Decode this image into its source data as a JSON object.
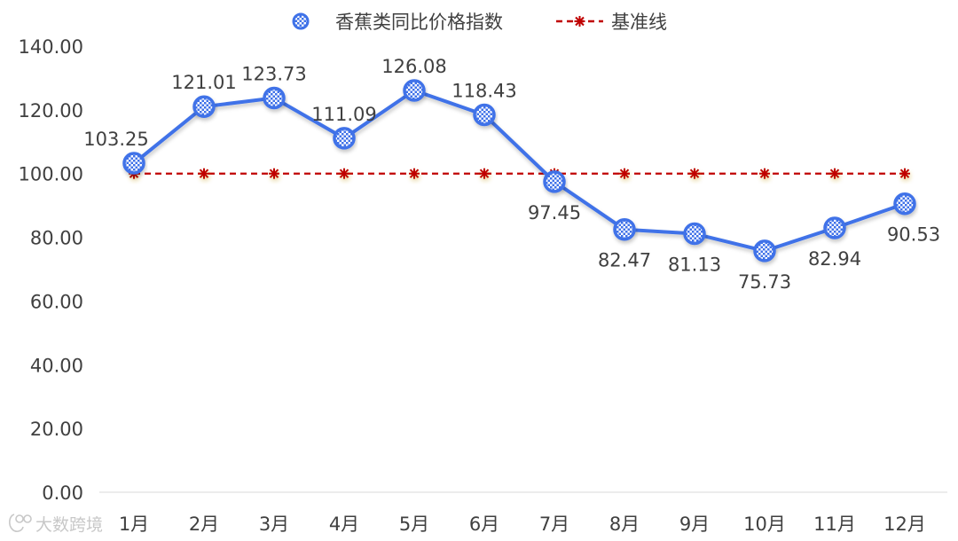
{
  "chart_data": {
    "type": "line",
    "categories": [
      "1月",
      "2月",
      "3月",
      "4月",
      "5月",
      "6月",
      "7月",
      "8月",
      "9月",
      "10月",
      "11月",
      "12月"
    ],
    "series": [
      {
        "name": "香蕉类同比价格指数",
        "values": [
          103.25,
          121.01,
          123.73,
          111.09,
          126.08,
          118.43,
          97.45,
          82.47,
          81.13,
          75.73,
          82.94,
          90.53
        ],
        "labels": [
          "103.25",
          "121.01",
          "123.73",
          "111.09",
          "126.08",
          "118.43",
          "97.45",
          "82.47",
          "81.13",
          "75.73",
          "82.94",
          "90.53"
        ],
        "color": "#3f72e8",
        "marker": "checker-circle"
      },
      {
        "name": "基准线",
        "values": [
          100,
          100,
          100,
          100,
          100,
          100,
          100,
          100,
          100,
          100,
          100,
          100
        ],
        "color": "#c00000",
        "style": "dashed",
        "marker": "asterisk"
      }
    ],
    "y_ticks": [
      "0.00",
      "20.00",
      "40.00",
      "60.00",
      "80.00",
      "100.00",
      "120.00",
      "140.00"
    ],
    "ylim": [
      0,
      140
    ],
    "grid": false,
    "legend": "top-center"
  },
  "watermark": {
    "text": "大数跨境",
    "icon": "logo-icon",
    "color": "#c8c8c8"
  }
}
